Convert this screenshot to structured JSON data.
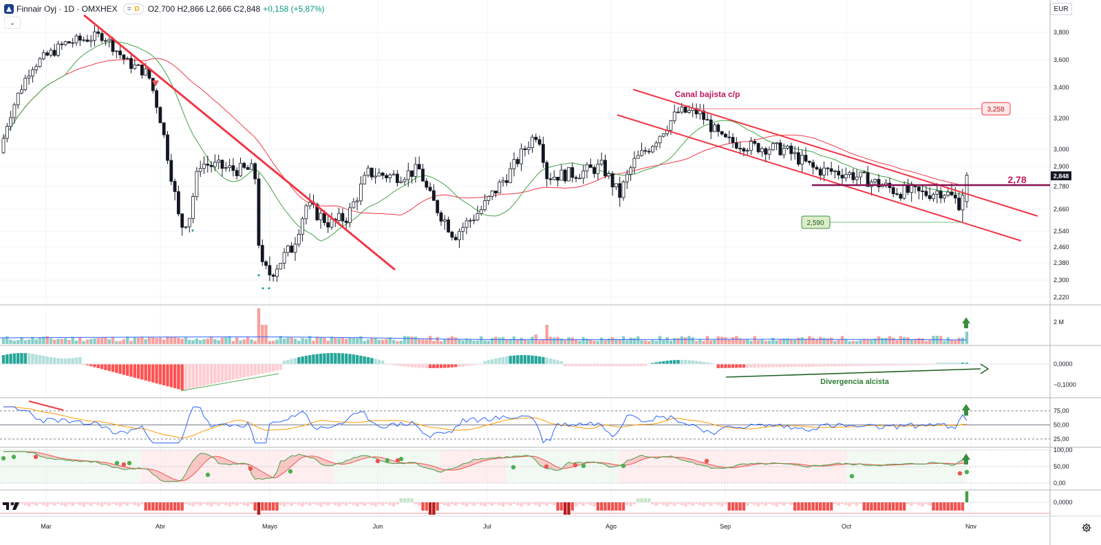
{
  "header": {
    "symbol": "Finnair Oyj · 1D · OMXHEX",
    "pill_icon": "equal-icon",
    "pill_label": "D",
    "ohlc": "O2,700 H2,866 L2,666 C2,848",
    "change": "+0,158 (+5,87%)"
  },
  "collapse_icon": "chevron-down-icon",
  "currency": "EUR",
  "footer": {
    "logo": "tradingview-logo",
    "settings_icon": "gear-icon"
  },
  "colors": {
    "up": "#26a69a",
    "down": "#ef5350",
    "candle_body_down": "#131722",
    "trend_line": "#f23645",
    "ma_fast": "#43a047",
    "ma_slow": "#f23645",
    "resistance": "#880e4f",
    "rsi": "#2962ff",
    "rsi_ma": "#ff9800",
    "up_arrow": "#388e3c"
  },
  "chart_data": {
    "type": "candlestick",
    "instrument": "Finnair Oyj",
    "timeframe": "1D",
    "exchange": "OMXHEX",
    "price_axis": {
      "ticks": [
        "3,800",
        "3,600",
        "3,400",
        "3,200",
        "3,000",
        "2,900",
        "2,780",
        "2,660",
        "2,540",
        "2,460",
        "2,380",
        "2,300",
        "2,220"
      ]
    },
    "x_axis": {
      "months": [
        "Mar",
        "Abr",
        "Mayo",
        "Jun",
        "Jul",
        "Ago",
        "Sep",
        "Oct",
        "Nov"
      ]
    },
    "candles_summary": {
      "last": {
        "open": 2.7,
        "high": 2.866,
        "low": 2.666,
        "close": 2.848
      },
      "range_high_approx": 3.78,
      "range_low_approx": 2.31
    },
    "labels": {
      "last_price": "2,848",
      "resistance_value": "2,78",
      "recent_high": "3,258",
      "recent_low": "2,590",
      "channel": "Canal bajista c/p",
      "divergence": "Divergencia alcista"
    },
    "volume_axis": {
      "ticks": [
        "2 M"
      ]
    },
    "macd_axis": {
      "ticks": [
        "0,0000",
        "−0,1000"
      ]
    },
    "rsi_axis": {
      "ticks": [
        "75,00",
        "50,00",
        "25,00"
      ]
    },
    "osc_axis": {
      "ticks": [
        "100,00",
        "50,00",
        "0,00"
      ]
    },
    "ind5_axis": {
      "ticks": [
        "0,0000"
      ]
    }
  }
}
